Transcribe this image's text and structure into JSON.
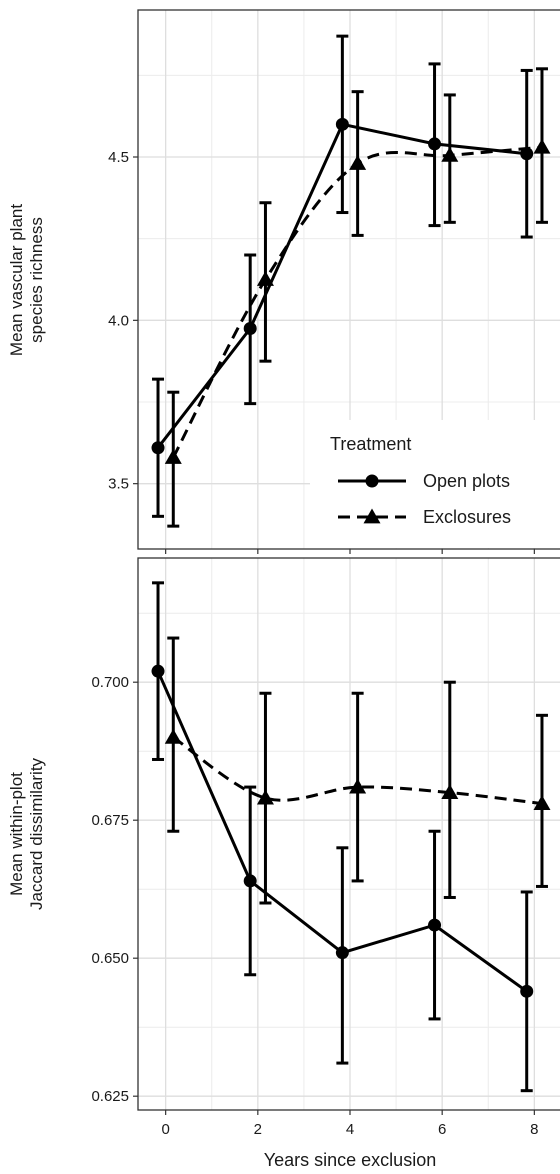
{
  "chart_data": [
    {
      "type": "line",
      "panel": "top",
      "ylabel_lines": [
        "Mean vascular plant",
        "species richness"
      ],
      "xlabel": "",
      "x_ticks": [
        0,
        2,
        4,
        6,
        8
      ],
      "y_ticks": [
        3.5,
        4.0,
        4.5
      ],
      "y_tick_labels": [
        "3.5",
        "4.0",
        "4.5"
      ],
      "xlim": [
        -0.6,
        8.6
      ],
      "ylim": [
        3.3,
        4.95
      ],
      "grid": true,
      "legend": {
        "title": "Treatment",
        "placement": "bottom-right",
        "entries": [
          {
            "label": "Open plots",
            "marker": "circle",
            "line": "solid"
          },
          {
            "label": "Exclosures",
            "marker": "triangle",
            "line": "dashed"
          }
        ]
      },
      "series": [
        {
          "name": "Open plots",
          "marker": "circle",
          "line": "solid",
          "x": [
            0,
            2,
            4,
            6,
            8
          ],
          "y": [
            3.61,
            3.975,
            4.6,
            4.54,
            4.51
          ],
          "lower": [
            3.4,
            3.745,
            4.33,
            4.29,
            4.255
          ],
          "upper": [
            3.82,
            4.2,
            4.87,
            4.785,
            4.765
          ]
        },
        {
          "name": "Exclosures",
          "marker": "triangle",
          "line": "dashed",
          "x": [
            0,
            2,
            4,
            6,
            8
          ],
          "y": [
            3.58,
            4.125,
            4.48,
            4.505,
            4.53
          ],
          "lower": [
            3.37,
            3.875,
            4.26,
            4.3,
            4.3
          ],
          "upper": [
            3.78,
            4.36,
            4.7,
            4.69,
            4.77
          ]
        }
      ]
    },
    {
      "type": "line",
      "panel": "bottom",
      "ylabel_lines": [
        "Mean within-plot",
        "Jaccard dissimilarity"
      ],
      "xlabel": "Years since exclusion",
      "x_ticks": [
        0,
        2,
        4,
        6,
        8
      ],
      "x_tick_labels": [
        "0",
        "2",
        "4",
        "6",
        "8"
      ],
      "y_ticks": [
        0.625,
        0.65,
        0.675,
        0.7
      ],
      "y_tick_labels": [
        "0.625",
        "0.650",
        "0.675",
        "0.700"
      ],
      "xlim": [
        -0.6,
        8.6
      ],
      "ylim": [
        0.6225,
        0.7225
      ],
      "grid": true,
      "series": [
        {
          "name": "Open plots",
          "marker": "circle",
          "line": "solid",
          "x": [
            0,
            2,
            4,
            6,
            8
          ],
          "y": [
            0.702,
            0.664,
            0.651,
            0.656,
            0.644
          ],
          "lower": [
            0.686,
            0.647,
            0.631,
            0.639,
            0.626
          ],
          "upper": [
            0.718,
            0.681,
            0.67,
            0.673,
            0.662
          ]
        },
        {
          "name": "Exclosures",
          "marker": "triangle",
          "line": "dashed",
          "x": [
            0,
            2,
            4,
            6,
            8
          ],
          "y": [
            0.69,
            0.679,
            0.681,
            0.68,
            0.678
          ],
          "lower": [
            0.673,
            0.66,
            0.664,
            0.661,
            0.663
          ],
          "upper": [
            0.708,
            0.698,
            0.698,
            0.7,
            0.694
          ]
        }
      ]
    }
  ]
}
